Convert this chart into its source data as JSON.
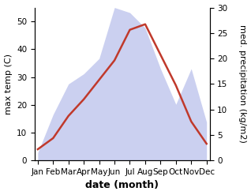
{
  "months": [
    "Jan",
    "Feb",
    "Mar",
    "Apr",
    "May",
    "Jun",
    "Jul",
    "Aug",
    "Sep",
    "Oct",
    "Nov",
    "Dec"
  ],
  "temp_max": [
    4,
    8,
    16,
    22,
    29,
    36,
    47,
    49,
    38,
    27,
    14,
    6
  ],
  "precipitation": [
    1.5,
    9,
    15,
    17,
    20,
    30,
    29,
    26,
    18,
    11,
    18,
    7.5
  ],
  "temp_ylim": [
    0,
    55
  ],
  "precip_ylim": [
    0,
    30
  ],
  "temp_yticks": [
    0,
    10,
    20,
    30,
    40,
    50
  ],
  "precip_yticks": [
    0,
    5,
    10,
    15,
    20,
    25,
    30
  ],
  "temp_color": "#c0392b",
  "precip_fill_color": "#b0b8e8",
  "precip_fill_alpha": 0.65,
  "xlabel": "date (month)",
  "ylabel_left": "max temp (C)",
  "ylabel_right": "med. precipitation (kg/m2)",
  "xlabel_fontsize": 9,
  "ylabel_fontsize": 8,
  "tick_fontsize": 7.5,
  "line_width": 1.8,
  "background_color": "#ffffff"
}
